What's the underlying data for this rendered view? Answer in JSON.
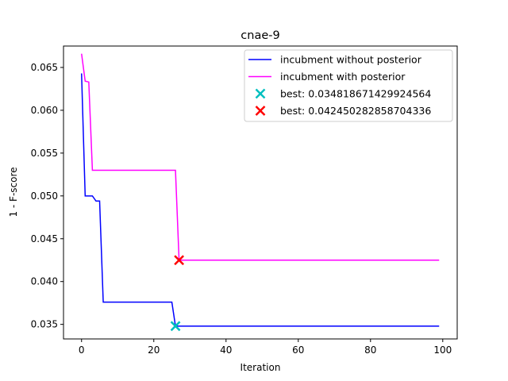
{
  "chart_data": {
    "type": "line",
    "title": "cnae-9",
    "xlabel": "Iteration",
    "ylabel": "1 - F-score",
    "xlim": [
      -5,
      104
    ],
    "ylim": [
      0.0333,
      0.0675
    ],
    "xticks": [
      0,
      20,
      40,
      60,
      80,
      100
    ],
    "yticks": [
      0.035,
      0.04,
      0.045,
      0.05,
      0.055,
      0.06,
      0.065
    ],
    "xtick_labels": [
      "0",
      "20",
      "40",
      "60",
      "80",
      "100"
    ],
    "ytick_labels": [
      "0.035",
      "0.040",
      "0.045",
      "0.050",
      "0.055",
      "0.060",
      "0.065"
    ],
    "grid": false,
    "legend_position": "top-right",
    "series": [
      {
        "name": "incubment without posterior",
        "color": "#0000ff",
        "points": [
          [
            0,
            0.0643
          ],
          [
            1,
            0.05
          ],
          [
            3,
            0.05
          ],
          [
            4,
            0.0494
          ],
          [
            5,
            0.0494
          ],
          [
            6,
            0.0376
          ],
          [
            25,
            0.0376
          ],
          [
            26,
            0.0348
          ],
          [
            99,
            0.0348
          ]
        ]
      },
      {
        "name": "incubment with posterior",
        "color": "#ff00ff",
        "points": [
          [
            0,
            0.0666
          ],
          [
            1,
            0.0634
          ],
          [
            2,
            0.0633
          ],
          [
            3,
            0.053
          ],
          [
            26,
            0.053
          ],
          [
            27,
            0.0425
          ],
          [
            99,
            0.0425
          ]
        ]
      }
    ],
    "markers": [
      {
        "name": "best: 0.034818671429924564",
        "color": "#00bfbf",
        "x": 26,
        "y": 0.0348
      },
      {
        "name": "best: 0.042450282858704336",
        "color": "#ff0000",
        "x": 27,
        "y": 0.0425
      }
    ]
  }
}
